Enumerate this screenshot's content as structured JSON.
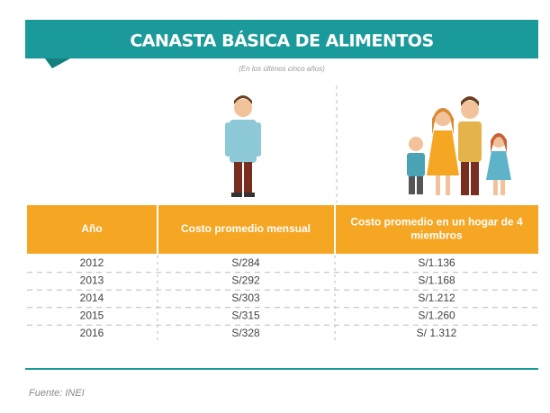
{
  "header": {
    "title": "CANASTA BÁSICA DE ALIMENTOS",
    "subtitle": "(En los últimos cinco años)"
  },
  "table": {
    "columns": [
      "Año",
      "Costo promedio mensual",
      "Costo promedio en un hogar de 4 miembros"
    ],
    "rows": [
      [
        "2012",
        "S/284",
        "S/1.136"
      ],
      [
        "2013",
        "S/292",
        "S/1.168"
      ],
      [
        "2014",
        "S/303",
        "S/1.212"
      ],
      [
        "2015",
        "S/315",
        "S/1.260"
      ],
      [
        "2016",
        "S/328",
        "S/ 1.312"
      ]
    ]
  },
  "footer": {
    "source": "Fuente: INEI"
  }
}
